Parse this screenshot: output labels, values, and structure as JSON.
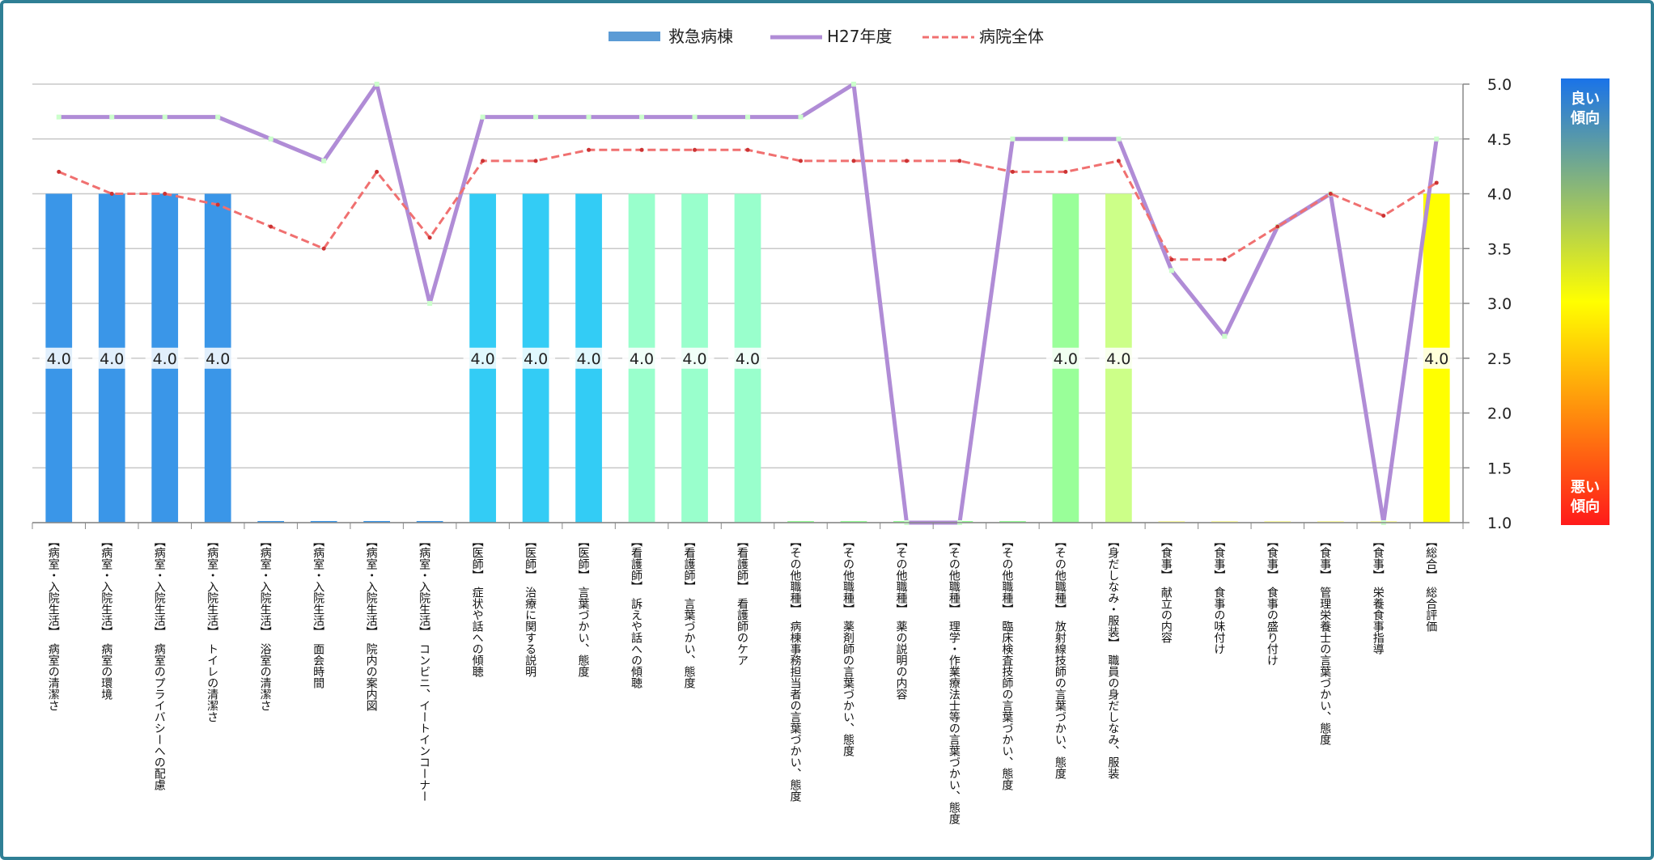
{
  "chart_data": {
    "type": "bar",
    "ylim": [
      1.0,
      5.0
    ],
    "yticks": [
      "1.0",
      "1.5",
      "2.0",
      "2.5",
      "3.0",
      "3.5",
      "4.0",
      "4.5",
      "5.0"
    ],
    "legend_position": "top",
    "grid": true,
    "categories": [
      [
        "【病室・入院生活】",
        "病室の清潔さ"
      ],
      [
        "【病室・入院生活】",
        "病室の環境"
      ],
      [
        "【病室・入院生活】",
        "病室のプライバシーへの配慮"
      ],
      [
        "【病室・入院生活】",
        "トイレの清潔さ"
      ],
      [
        "【病室・入院生活】",
        "浴室の清潔さ"
      ],
      [
        "【病室・入院生活】",
        "面会時間"
      ],
      [
        "【病室・入院生活】",
        "院内の案内図"
      ],
      [
        "【病室・入院生活】",
        "コンビニ、イートインコーナー"
      ],
      [
        "【医師】",
        "症状や話への傾聴"
      ],
      [
        "【医師】",
        "治療に関する説明"
      ],
      [
        "【医師】",
        "言葉づかい、態度"
      ],
      [
        "【看護師】",
        "訴えや話への傾聴"
      ],
      [
        "【看護師】",
        "言葉づかい、態度"
      ],
      [
        "【看護師】",
        "看護師のケア"
      ],
      [
        "【その他職種】",
        "病棟事務担当者の言葉づかい、態度"
      ],
      [
        "【その他職種】",
        "薬剤師の言葉づかい、態度"
      ],
      [
        "【その他職種】",
        "薬の説明の内容"
      ],
      [
        "【その他職種】",
        "理学・作業療法士等の言葉づかい、態度"
      ],
      [
        "【その他職種】",
        "臨床検査技師の言葉づかい、態度"
      ],
      [
        "【その他職種】",
        "放射線技師の言葉づかい、態度"
      ],
      [
        "【身だしなみ・服装】",
        "職員の身だしなみ、服装"
      ],
      [
        "【食事】",
        "献立の内容"
      ],
      [
        "【食事】",
        "食事の味付け"
      ],
      [
        "【食事】",
        "食事の盛り付け"
      ],
      [
        "【食事】",
        "管理栄養士の言葉づかい、態度"
      ],
      [
        "【食事】",
        "栄養食事指導"
      ],
      [
        "【総合】",
        "総合評価"
      ]
    ],
    "series": [
      {
        "name": "救急病棟",
        "kind": "bar",
        "values": [
          4.0,
          4.0,
          4.0,
          4.0,
          null,
          null,
          null,
          null,
          4.0,
          4.0,
          4.0,
          4.0,
          4.0,
          4.0,
          null,
          null,
          null,
          null,
          null,
          4.0,
          4.0,
          null,
          null,
          null,
          null,
          null,
          4.0
        ],
        "colors": [
          "#3a96e8",
          "#3a96e8",
          "#3a96e8",
          "#3a96e8",
          "#3a96e8",
          "#3a96e8",
          "#3a96e8",
          "#3a96e8",
          "#33ccf5",
          "#33ccf5",
          "#33ccf5",
          "#99ffcc",
          "#99ffcc",
          "#99ffcc",
          "#99ff99",
          "#99ff99",
          "#99ff99",
          "#99ff99",
          "#99ff99",
          "#99ff99",
          "#ccff88",
          "#ffffaa",
          "#ffffaa",
          "#ffffaa",
          "#ffffaa",
          "#ffffaa",
          "#ffff00"
        ],
        "labels": [
          "4.0",
          "4.0",
          "4.0",
          "4.0",
          "",
          "",
          "",
          "",
          "4.0",
          "4.0",
          "4.0",
          "4.0",
          "4.0",
          "4.0",
          "",
          "",
          "",
          "",
          "",
          "4.0",
          "4.0",
          "",
          "",
          "",
          "",
          "",
          "4.0"
        ]
      },
      {
        "name": "H27年度",
        "kind": "line",
        "color": "#b08cd6",
        "values": [
          4.7,
          4.7,
          4.7,
          4.7,
          4.5,
          4.3,
          5.0,
          3.0,
          4.7,
          4.7,
          4.7,
          4.7,
          4.7,
          4.7,
          4.7,
          5.0,
          1.0,
          1.0,
          4.5,
          4.5,
          4.5,
          3.3,
          2.7,
          3.7,
          4.0,
          1.0,
          4.5
        ]
      },
      {
        "name": "病院全体",
        "kind": "line",
        "color": "#f07070",
        "values": [
          4.2,
          4.0,
          4.0,
          3.9,
          3.7,
          3.5,
          4.2,
          3.6,
          4.3,
          4.3,
          4.4,
          4.4,
          4.4,
          4.4,
          4.3,
          4.3,
          4.3,
          4.3,
          4.2,
          4.2,
          4.3,
          3.4,
          3.4,
          3.7,
          4.0,
          3.8,
          4.1
        ]
      }
    ]
  },
  "scale_legend": {
    "good": [
      "良い",
      "傾向"
    ],
    "bad": [
      "悪い",
      "傾向"
    ],
    "gradient": [
      "#1a73e8",
      "#ffff00",
      "#ff1a1a"
    ]
  }
}
